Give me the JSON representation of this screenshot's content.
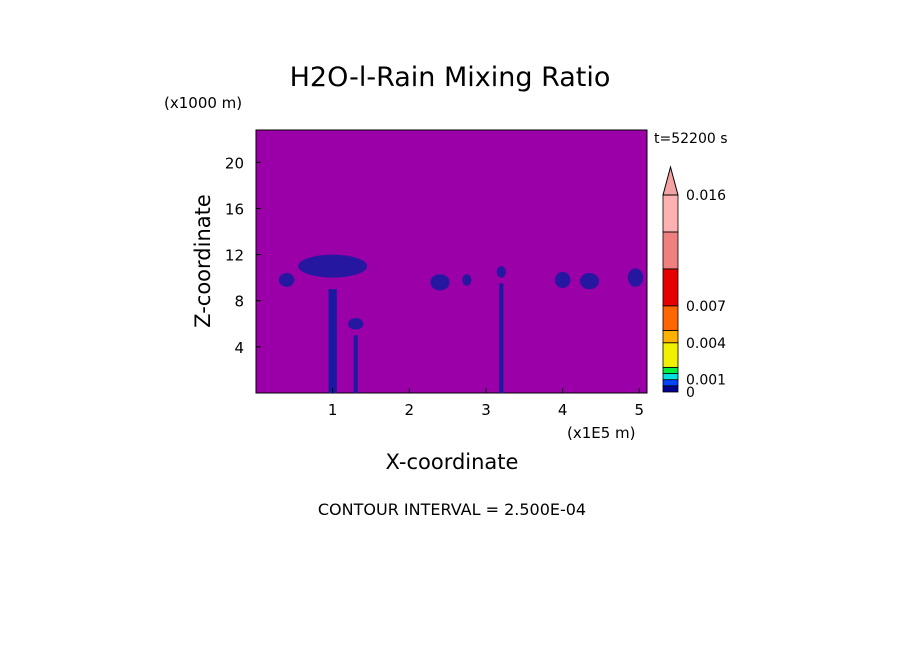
{
  "chart_data": {
    "type": "heatmap",
    "title": "H2O-l-Rain Mixing Ratio",
    "xlabel": "X-coordinate",
    "ylabel": "Z-coordinate",
    "x_unit": "(x1E5 m)",
    "y_unit": "(x1000 m)",
    "time_label": "t=52200 s",
    "footer": "CONTOUR INTERVAL = 2.500E-04",
    "xlim": [
      0,
      5.1
    ],
    "ylim": [
      0,
      22.8
    ],
    "x_ticks": [
      "1",
      "2",
      "3",
      "4",
      "5"
    ],
    "y_ticks": [
      "4",
      "8",
      "12",
      "16",
      "20"
    ],
    "background_color": "#9b00a8",
    "colorbar": {
      "labels": [
        "0",
        "0.001",
        "0.004",
        "0.007",
        "0.016"
      ],
      "colors": [
        "#000090",
        "#0044ff",
        "#00e0e0",
        "#00ee44",
        "#f0f000",
        "#ffb000",
        "#ff6600",
        "#e60000",
        "#f08080",
        "#ffb0b0"
      ],
      "max_value": 0.016
    },
    "features": [
      {
        "x": 0.4,
        "z": 9.8,
        "width": 0.2,
        "height": 1.2,
        "z_bottom": 8.8
      },
      {
        "x": 1.0,
        "z": 11.0,
        "width": 0.9,
        "height": 2.0,
        "z_bottom": 0.0
      },
      {
        "x": 1.3,
        "z": 6.0,
        "width": 0.2,
        "height": 1.0,
        "z_bottom": 0.0
      },
      {
        "x": 2.4,
        "z": 9.6,
        "width": 0.25,
        "height": 1.4,
        "z_bottom": 8.6
      },
      {
        "x": 2.75,
        "z": 9.8,
        "width": 0.12,
        "height": 1.0,
        "z_bottom": 9.0
      },
      {
        "x": 3.2,
        "z": 10.5,
        "width": 0.12,
        "height": 1.0,
        "z_bottom": 0.0
      },
      {
        "x": 4.0,
        "z": 9.8,
        "width": 0.2,
        "height": 1.4,
        "z_bottom": 8.6
      },
      {
        "x": 4.35,
        "z": 9.7,
        "width": 0.25,
        "height": 1.4,
        "z_bottom": 8.4
      },
      {
        "x": 4.95,
        "z": 10.0,
        "width": 0.2,
        "height": 1.6,
        "z_bottom": 8.2
      }
    ]
  }
}
